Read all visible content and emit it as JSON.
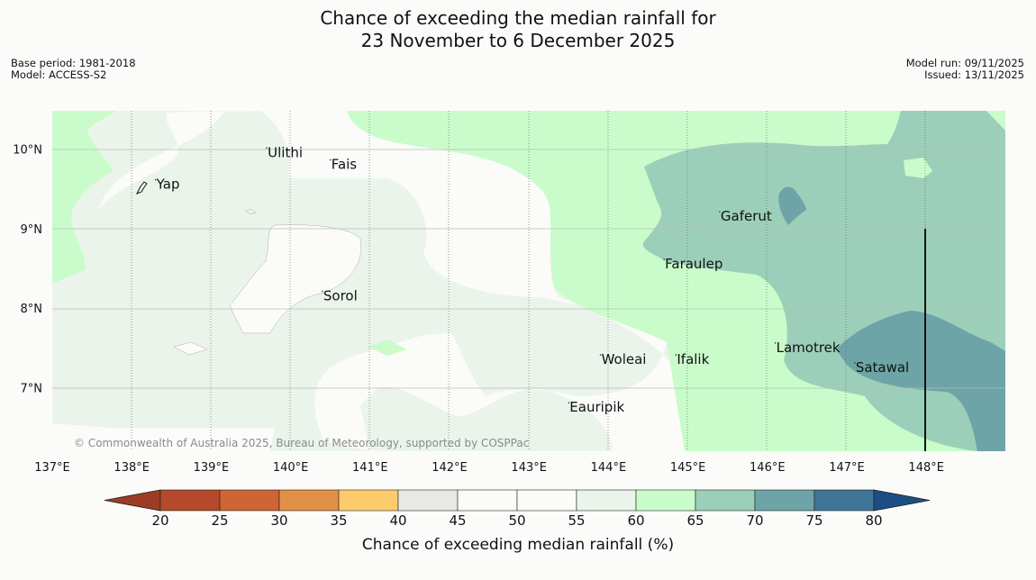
{
  "title": {
    "line1": "Chance of exceeding the median rainfall for",
    "line2": "23 November to 6 December 2025"
  },
  "meta_left": {
    "base_period": "Base period: 1981-2018",
    "model": "Model: ACCESS-S2"
  },
  "meta_right": {
    "model_run": "Model run: 09/11/2025",
    "issued": "Issued: 13/11/2025"
  },
  "map": {
    "lon_labels": [
      "137°E",
      "138°E",
      "139°E",
      "140°E",
      "141°E",
      "142°E",
      "143°E",
      "144°E",
      "145°E",
      "146°E",
      "147°E",
      "148°E"
    ],
    "lat_labels": [
      "10°N",
      "9°N",
      "8°N",
      "7°N"
    ],
    "copyright": "© Commonwealth of Australia 2025, Bureau of Meteorology, supported by COSPPac",
    "places": [
      {
        "name": "Yap",
        "lon": 138.3,
        "lat": 9.5
      },
      {
        "name": "Ulithi",
        "lon": 139.7,
        "lat": 9.9
      },
      {
        "name": "Fais",
        "lon": 140.5,
        "lat": 9.75
      },
      {
        "name": "Gaferut",
        "lon": 145.4,
        "lat": 9.1
      },
      {
        "name": "Faraulep",
        "lon": 144.7,
        "lat": 8.5
      },
      {
        "name": "Sorol",
        "lon": 140.4,
        "lat": 8.1
      },
      {
        "name": "Lamotrek",
        "lon": 146.1,
        "lat": 7.45
      },
      {
        "name": "Woleai",
        "lon": 143.9,
        "lat": 7.3
      },
      {
        "name": "Ifalik",
        "lon": 144.85,
        "lat": 7.3
      },
      {
        "name": "Satawal",
        "lon": 147.1,
        "lat": 7.2
      },
      {
        "name": "Eauripik",
        "lon": 143.5,
        "lat": 6.7
      }
    ]
  },
  "colorbar": {
    "title": "Chance of exceeding median rainfall (%)",
    "ticks": [
      "20",
      "25",
      "30",
      "35",
      "40",
      "45",
      "50",
      "55",
      "60",
      "65",
      "70",
      "75",
      "80"
    ],
    "colors": [
      "#b44a2b",
      "#cf6434",
      "#e39047",
      "#fdcb6b",
      "#e9e9e4",
      "#fbfcfa",
      "#fbfcfa",
      "#ebf4ea",
      "#c9fcca",
      "#9ccfb9",
      "#6da4a7",
      "#3f7597"
    ],
    "under_color": "#9b3d25",
    "over_color": "#1b4e85"
  }
}
